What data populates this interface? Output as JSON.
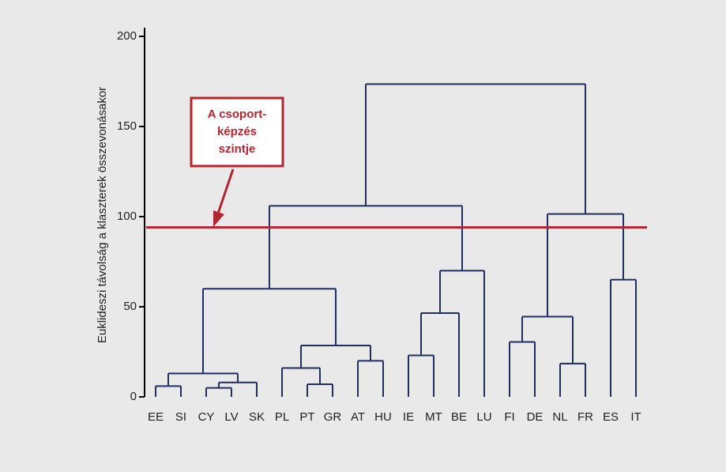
{
  "chart_data": {
    "type": "dendrogram",
    "ylabel": "Euklideszi távolság a klaszterek összevonásakor",
    "categories": [
      "EE",
      "SI",
      "CY",
      "LV",
      "SK",
      "PL",
      "PT",
      "GR",
      "AT",
      "HU",
      "IE",
      "MT",
      "BE",
      "LU",
      "FI",
      "DE",
      "NL",
      "FR",
      "ES",
      "IT"
    ],
    "merges": [
      {
        "left": [
          "EE"
        ],
        "right": [
          "SI"
        ],
        "height": 6
      },
      {
        "left": [
          "CY"
        ],
        "right": [
          "LV"
        ],
        "height": 5
      },
      {
        "left": [
          "CY",
          "LV"
        ],
        "right": [
          "SK"
        ],
        "height": 8
      },
      {
        "left": [
          "EE",
          "SI"
        ],
        "right": [
          "CY",
          "LV",
          "SK"
        ],
        "height": 13
      },
      {
        "left": [
          "PT"
        ],
        "right": [
          "GR"
        ],
        "height": 7
      },
      {
        "left": [
          "PL"
        ],
        "right": [
          "PT",
          "GR"
        ],
        "height": 16
      },
      {
        "left": [
          "AT"
        ],
        "right": [
          "HU"
        ],
        "height": 20
      },
      {
        "left": [
          "PL",
          "PT",
          "GR"
        ],
        "right": [
          "AT",
          "HU"
        ],
        "height": 28.5
      },
      {
        "left": [
          "EE",
          "SI",
          "CY",
          "LV",
          "SK"
        ],
        "right": [
          "PL",
          "PT",
          "GR",
          "AT",
          "HU"
        ],
        "height": 60
      },
      {
        "left": [
          "IE"
        ],
        "right": [
          "MT"
        ],
        "height": 23
      },
      {
        "left": [
          "IE",
          "MT"
        ],
        "right": [
          "BE"
        ],
        "height": 46.5
      },
      {
        "left": [
          "IE",
          "MT",
          "BE"
        ],
        "right": [
          "LU"
        ],
        "height": 70
      },
      {
        "left": [
          "EE",
          "SI",
          "CY",
          "LV",
          "SK",
          "PL",
          "PT",
          "GR",
          "AT",
          "HU"
        ],
        "right": [
          "IE",
          "MT",
          "BE",
          "LU"
        ],
        "height": 106
      },
      {
        "left": [
          "NL"
        ],
        "right": [
          "FR"
        ],
        "height": 18.5
      },
      {
        "left": [
          "FI"
        ],
        "right": [
          "DE"
        ],
        "height": 30.5
      },
      {
        "left": [
          "FI",
          "DE"
        ],
        "right": [
          "NL",
          "FR"
        ],
        "height": 44.5
      },
      {
        "left": [
          "ES"
        ],
        "right": [
          "IT"
        ],
        "height": 65
      },
      {
        "left": [
          "FI",
          "DE",
          "NL",
          "FR"
        ],
        "right": [
          "ES",
          "IT"
        ],
        "height": 101.5
      },
      {
        "left": [
          "EE",
          "SI",
          "CY",
          "LV",
          "SK",
          "PL",
          "PT",
          "GR",
          "AT",
          "HU",
          "IE",
          "MT",
          "BE",
          "LU"
        ],
        "right": [
          "FI",
          "DE",
          "NL",
          "FR",
          "ES",
          "IT"
        ],
        "height": 173.5
      }
    ],
    "color": "#1f2f5f",
    "threshold": 94,
    "threshold_color": "#b3262f",
    "annotation": [
      "A csoport-",
      "képzés",
      "szintje"
    ],
    "ylim": [
      0,
      205
    ],
    "yticks": [
      0,
      50,
      100,
      150,
      200
    ]
  }
}
